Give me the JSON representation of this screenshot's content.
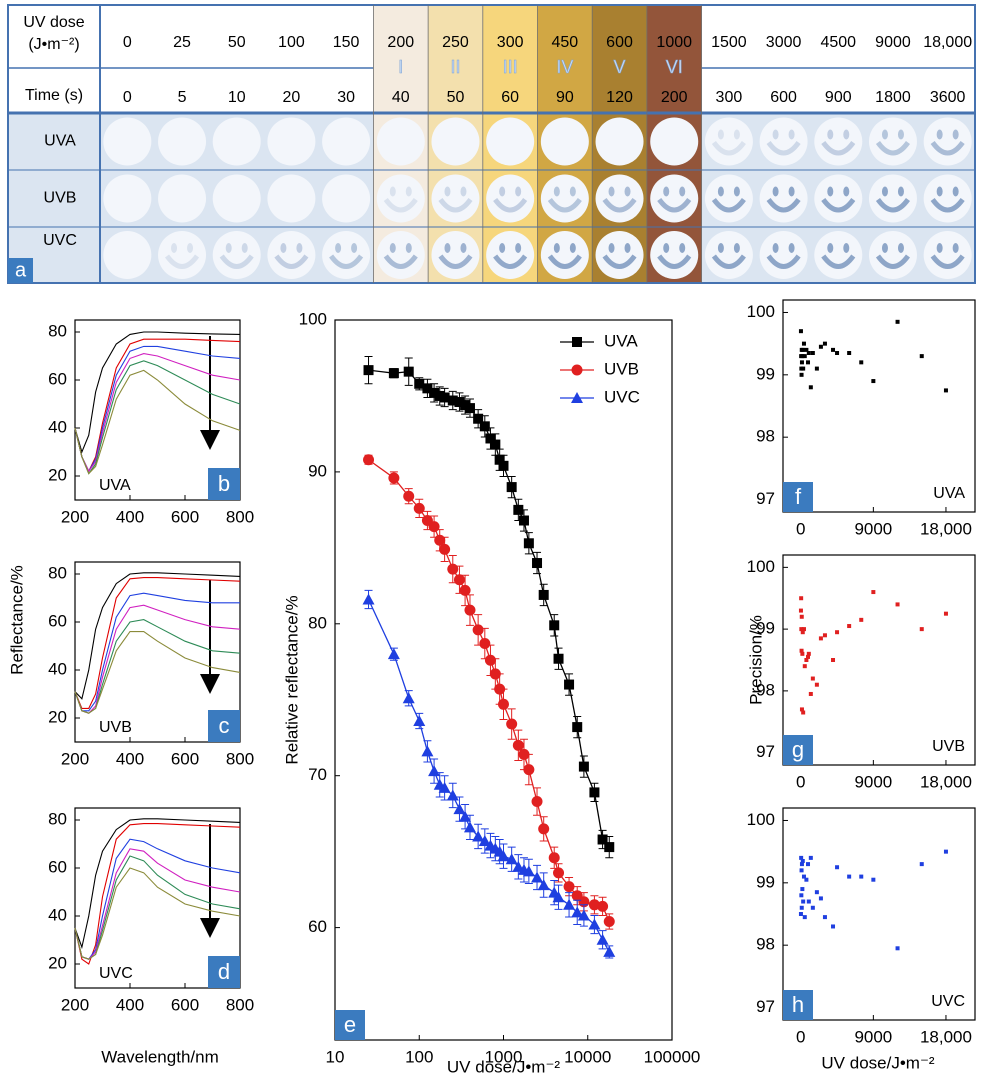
{
  "table": {
    "panel_label": "a",
    "header_label": [
      "UV dose",
      "(J•m⁻²)"
    ],
    "doses": [
      0,
      25,
      50,
      100,
      150,
      200,
      250,
      300,
      450,
      600,
      1000,
      1500,
      3000,
      4500,
      9000,
      "18,000"
    ],
    "stages": [
      "I",
      "II",
      "III",
      "IV",
      "V",
      "VI"
    ],
    "time_label": "Time (s)",
    "times": [
      0,
      5,
      10,
      20,
      30,
      40,
      50,
      60,
      90,
      120,
      200,
      300,
      600,
      900,
      1800,
      3600
    ],
    "rows": [
      "UVA",
      "UVB",
      "UVC"
    ]
  },
  "labels": {
    "reflectance": "Reflectance/%",
    "wavelength": "Wavelength/nm",
    "precision": "Precision/%",
    "dose": "UV dose/J•m⁻²"
  },
  "chart_data": [
    {
      "type": "line",
      "panel_label": "b",
      "annotation": "UVA",
      "x": [
        200,
        225,
        250,
        275,
        300,
        350,
        400,
        450,
        500,
        600,
        700,
        800
      ],
      "xlim": [
        200,
        800
      ],
      "xticks": [
        200,
        400,
        600,
        800
      ],
      "ylim": [
        10,
        85
      ],
      "yticks": [
        20,
        40,
        60,
        80
      ],
      "series": [
        {
          "color": "#000000",
          "values": [
            40,
            30,
            37,
            55,
            65,
            75,
            79,
            80,
            80,
            79.5,
            79.2,
            79
          ]
        },
        {
          "color": "#e00000",
          "values": [
            40,
            28,
            22,
            28,
            42,
            65,
            75,
            77,
            77,
            77,
            76.5,
            76
          ]
        },
        {
          "color": "#2040e0",
          "values": [
            40,
            28,
            22,
            27,
            40,
            62,
            72,
            74,
            74,
            72,
            70,
            69
          ]
        },
        {
          "color": "#d020c0",
          "values": [
            40,
            28,
            22,
            26,
            38,
            59,
            69,
            71,
            70,
            66,
            62,
            60
          ]
        },
        {
          "color": "#2e8b57",
          "values": [
            40,
            28,
            21,
            25,
            36,
            56,
            66,
            68,
            66,
            60,
            54,
            50
          ]
        },
        {
          "color": "#8b8b3a",
          "values": [
            40,
            28,
            21,
            24,
            33,
            52,
            62,
            64,
            60,
            50,
            43,
            39
          ]
        }
      ]
    },
    {
      "type": "line",
      "panel_label": "c",
      "annotation": "UVB",
      "x": [
        200,
        225,
        250,
        275,
        300,
        350,
        400,
        450,
        500,
        600,
        700,
        800
      ],
      "xlim": [
        200,
        800
      ],
      "xticks": [
        200,
        400,
        600,
        800
      ],
      "ylim": [
        10,
        85
      ],
      "yticks": [
        20,
        40,
        60,
        80
      ],
      "series": [
        {
          "color": "#000000",
          "values": [
            31,
            28,
            40,
            57,
            66,
            76,
            80,
            80.5,
            80.5,
            80,
            79.5,
            79
          ]
        },
        {
          "color": "#e00000",
          "values": [
            31,
            24,
            24,
            30,
            45,
            70,
            78,
            78.5,
            78.5,
            78,
            77.5,
            77
          ]
        },
        {
          "color": "#2040e0",
          "values": [
            31,
            23,
            23,
            27,
            40,
            62,
            71,
            72,
            71,
            69,
            68,
            68
          ]
        },
        {
          "color": "#d020c0",
          "values": [
            31,
            23,
            22,
            25,
            37,
            57,
            66,
            67,
            65,
            61,
            58,
            57
          ]
        },
        {
          "color": "#2e8b57",
          "values": [
            31,
            23,
            22,
            24,
            34,
            52,
            60,
            61,
            58,
            52,
            48,
            47
          ]
        },
        {
          "color": "#8b8b3a",
          "values": [
            31,
            23,
            22,
            24,
            32,
            48,
            56,
            56,
            52,
            45,
            41,
            39
          ]
        }
      ]
    },
    {
      "type": "line",
      "panel_label": "d",
      "annotation": "UVC",
      "x": [
        200,
        225,
        250,
        275,
        300,
        350,
        400,
        450,
        500,
        600,
        700,
        800
      ],
      "xlim": [
        200,
        800
      ],
      "xticks": [
        200,
        400,
        600,
        800
      ],
      "ylim": [
        10,
        85
      ],
      "yticks": [
        20,
        40,
        60,
        80
      ],
      "series": [
        {
          "color": "#000000",
          "values": [
            35,
            27,
            40,
            57,
            67,
            76,
            80,
            80.5,
            80.5,
            80,
            79.5,
            79
          ]
        },
        {
          "color": "#e00000",
          "values": [
            35,
            22,
            20,
            28,
            48,
            72,
            78,
            78.5,
            78.5,
            78,
            77.5,
            77
          ]
        },
        {
          "color": "#2040e0",
          "values": [
            35,
            23,
            22,
            26,
            40,
            64,
            72,
            71,
            68,
            63,
            60,
            58
          ]
        },
        {
          "color": "#d020c0",
          "values": [
            35,
            23,
            22,
            25,
            36,
            58,
            68,
            67,
            62,
            55,
            52,
            50
          ]
        },
        {
          "color": "#2e8b57",
          "values": [
            35,
            23,
            22,
            24,
            34,
            55,
            65,
            63,
            57,
            49,
            45,
            43
          ]
        },
        {
          "color": "#8b8b3a",
          "values": [
            35,
            23,
            22,
            24,
            32,
            52,
            60,
            58,
            52,
            45,
            42,
            40
          ]
        }
      ]
    },
    {
      "type": "line",
      "panel_label": "e",
      "xlabel": "UV dose/J•m⁻²",
      "ylabel": "Relative reflectance/%",
      "x_scale": "log",
      "legend": "upper right",
      "x": [
        25,
        50,
        75,
        100,
        125,
        150,
        175,
        200,
        250,
        300,
        350,
        400,
        500,
        600,
        700,
        800,
        900,
        1000,
        1250,
        1500,
        1750,
        2000,
        2500,
        3000,
        4000,
        4500,
        6000,
        7500,
        9000,
        12000,
        15000,
        18000
      ],
      "xlim": [
        10,
        100000
      ],
      "xticks": [
        10,
        100,
        1000,
        10000,
        100000
      ],
      "ylim": [
        52.6,
        100
      ],
      "yticks": [
        60,
        70,
        80,
        90,
        100
      ],
      "series": [
        {
          "name": "UVA",
          "color": "#000000",
          "marker": "square",
          "values": [
            96.7,
            96.5,
            96.6,
            95.8,
            95.5,
            95.2,
            95.0,
            94.9,
            94.7,
            94.6,
            94.4,
            94.2,
            93.5,
            93.0,
            92.2,
            91.8,
            90.8,
            90.4,
            89.0,
            87.5,
            86.8,
            85.3,
            84.0,
            81.9,
            79.9,
            77.7,
            76.0,
            73.2,
            70.6,
            68.9,
            65.8,
            65.3
          ],
          "errors": [
            0.9,
            0.3,
            0.9,
            0.4,
            0.6,
            0.6,
            0.6,
            0.6,
            0.6,
            0.6,
            0.6,
            0.6,
            0.6,
            0.7,
            0.7,
            0.7,
            0.7,
            0.7,
            0.7,
            0.7,
            0.7,
            0.7,
            0.7,
            0.7,
            0.7,
            0.7,
            0.7,
            0.7,
            0.7,
            0.6,
            0.6,
            0.7
          ]
        },
        {
          "name": "UVB",
          "color": "#e02020",
          "marker": "circle",
          "values": [
            90.8,
            89.6,
            88.4,
            87.6,
            86.8,
            86.4,
            85.5,
            84.9,
            83.6,
            82.9,
            82.2,
            80.9,
            79.6,
            78.7,
            77.6,
            76.7,
            75.7,
            74.7,
            73.4,
            72.0,
            71.4,
            70.4,
            68.3,
            66.5,
            64.6,
            63.6,
            62.7,
            62.1,
            61.7,
            61.5,
            61.4,
            60.4
          ],
          "errors": [
            0.3,
            0.4,
            0.5,
            0.6,
            0.6,
            0.7,
            0.7,
            0.8,
            0.9,
            0.9,
            1.0,
            1.0,
            1.0,
            1.0,
            1.0,
            1.0,
            1.0,
            1.0,
            1.0,
            1.0,
            1.0,
            1.0,
            0.9,
            0.8,
            0.7,
            0.6,
            0.6,
            0.6,
            0.6,
            0.6,
            0.6,
            0.5
          ]
        },
        {
          "name": "UVC",
          "color": "#1f3fe0",
          "marker": "triangle",
          "values": [
            81.6,
            78.0,
            75.1,
            73.6,
            71.6,
            70.3,
            69.4,
            69.2,
            68.7,
            67.8,
            67.3,
            66.6,
            66.0,
            65.7,
            65.4,
            65.2,
            65.0,
            64.7,
            64.5,
            64.0,
            63.8,
            63.7,
            63.3,
            62.8,
            62.3,
            62.0,
            61.5,
            61.0,
            60.8,
            60.2,
            59.2,
            58.4
          ],
          "errors": [
            0.6,
            0.4,
            0.5,
            0.5,
            0.7,
            0.8,
            0.8,
            0.8,
            0.8,
            0.8,
            0.8,
            0.8,
            0.8,
            0.8,
            0.8,
            0.8,
            0.8,
            0.8,
            0.8,
            0.8,
            0.8,
            0.8,
            0.8,
            0.8,
            0.8,
            0.8,
            0.8,
            0.8,
            0.7,
            0.6,
            0.6,
            0.4
          ]
        }
      ]
    },
    {
      "type": "scatter",
      "panel_label": "f",
      "annotation": "UVA",
      "color": "#000000",
      "x": [
        25,
        50,
        75,
        100,
        125,
        150,
        200,
        250,
        300,
        400,
        500,
        700,
        900,
        1000,
        1250,
        1500,
        2000,
        2500,
        3000,
        4000,
        4500,
        6000,
        7500,
        9000,
        12000,
        15000,
        18000
      ],
      "values": [
        99.7,
        99.3,
        99.1,
        99.0,
        99.4,
        99.2,
        99.3,
        99.4,
        99.1,
        99.5,
        99.3,
        99.4,
        99.2,
        99.35,
        98.8,
        99.35,
        99.1,
        99.45,
        99.5,
        99.4,
        99.35,
        99.35,
        99.2,
        98.9,
        99.85,
        99.3,
        98.75
      ],
      "xlim": [
        -2200,
        21600
      ],
      "xticks": [
        0,
        9000,
        {
          "value": 18000,
          "label": "18,000"
        }
      ],
      "ylim": [
        96.8,
        100.2
      ],
      "yticks": [
        97,
        98,
        99,
        100
      ]
    },
    {
      "type": "scatter",
      "panel_label": "g",
      "annotation": "UVB",
      "color": "#e02020",
      "x": [
        25,
        50,
        75,
        100,
        125,
        150,
        200,
        250,
        300,
        400,
        500,
        700,
        900,
        1000,
        1250,
        1500,
        2000,
        2500,
        3000,
        4000,
        4500,
        6000,
        7500,
        9000,
        12000,
        15000,
        18000
      ],
      "values": [
        99.3,
        99.5,
        99.0,
        98.65,
        99.2,
        97.7,
        98.6,
        98.95,
        97.65,
        99.0,
        98.4,
        98.5,
        98.55,
        98.6,
        97.95,
        98.2,
        98.1,
        98.85,
        98.9,
        98.5,
        98.95,
        99.05,
        99.15,
        99.6,
        99.4,
        99.0,
        99.25
      ],
      "xlim": [
        -2200,
        21600
      ],
      "xticks": [
        0,
        9000,
        {
          "value": 18000,
          "label": "18,000"
        }
      ],
      "ylim": [
        96.8,
        100.2
      ],
      "yticks": [
        97,
        98,
        99,
        100
      ]
    },
    {
      "type": "scatter",
      "panel_label": "h",
      "annotation": "UVC",
      "color": "#1f3fe0",
      "x": [
        25,
        50,
        75,
        100,
        125,
        150,
        200,
        250,
        300,
        400,
        500,
        700,
        900,
        1000,
        1250,
        1500,
        2000,
        2500,
        3000,
        4000,
        4500,
        6000,
        7500,
        9000,
        12000,
        15000,
        18000
      ],
      "values": [
        98.5,
        99.4,
        98.8,
        99.2,
        98.6,
        99.3,
        98.9,
        99.35,
        98.7,
        99.1,
        98.45,
        99.05,
        99.3,
        98.7,
        99.4,
        98.6,
        98.85,
        98.75,
        98.45,
        98.3,
        99.25,
        99.1,
        99.1,
        99.05,
        97.95,
        99.3,
        99.5
      ],
      "xlim": [
        -2200,
        21600
      ],
      "xticks": [
        0,
        9000,
        {
          "value": 18000,
          "label": "18,000"
        }
      ],
      "ylim": [
        96.8,
        100.2
      ],
      "yticks": [
        97,
        98,
        99,
        100
      ]
    }
  ]
}
